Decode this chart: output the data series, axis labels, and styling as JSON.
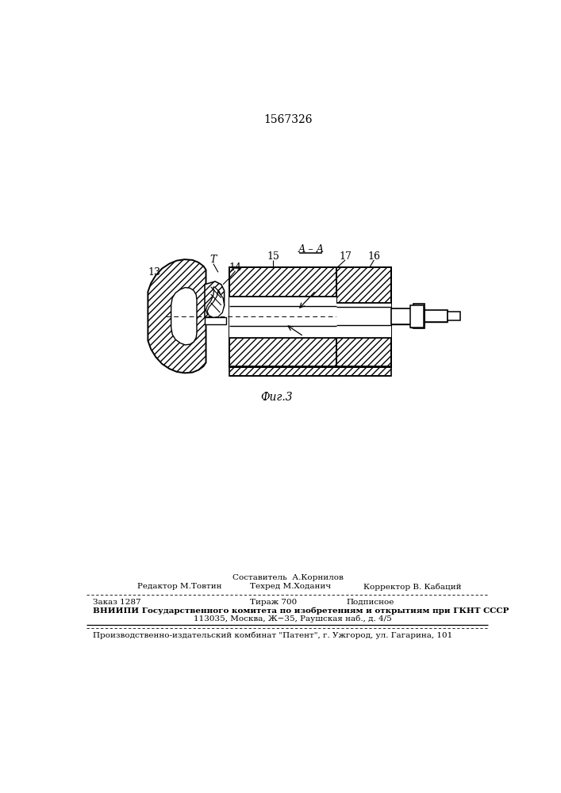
{
  "patent_number": "1567326",
  "fig_label": "Фиг.3",
  "section_label": "А – А",
  "footer": {
    "composer": "Составитель  А.Корнилов",
    "editor": "Редактор М.Товтин",
    "techred": "Техред М.Ходанич",
    "corrector": "Корректор В. Кабаций",
    "order": "Заказ 1287",
    "edition": "Тираж 700",
    "subscription": "Подписное",
    "vnipi_line1": "ВНИИПИ Государственного комитета по изобретениям и открытиям при ГКНТ СССР",
    "vnipi_line2": "113035, Москва, Ж−35, Раушская наб., д. 4/5",
    "factory": "Производственно-издательский комбинат \"Патент\", г. Ужгород, ул. Гагарина, 101"
  }
}
